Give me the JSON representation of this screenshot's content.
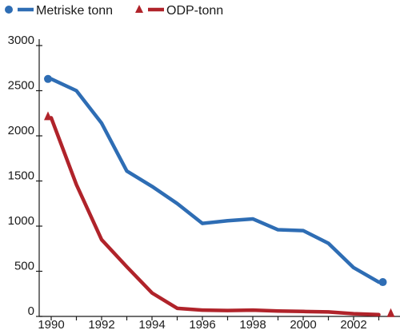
{
  "chart_data": {
    "type": "line",
    "title": "",
    "xlabel": "",
    "ylabel": "",
    "xlim": [
      1989.4,
      2003.8
    ],
    "ylim": [
      0,
      3000
    ],
    "y_ticks": [
      "0",
      "500",
      "1000",
      "1500",
      "2000",
      "2500",
      "3000"
    ],
    "x_ticks": [
      "1990",
      "1992",
      "1994",
      "1996",
      "1998",
      "2000",
      "2002"
    ],
    "grid": false,
    "legend_position": "top-left",
    "series": [
      {
        "name": "Metriske tonn",
        "color": "#2e6db4",
        "marker": "circle",
        "x": [
          1990,
          1991,
          1992,
          1993,
          1994,
          1995,
          1996,
          1997,
          1998,
          1999,
          2000,
          2001,
          2002,
          2003
        ],
        "y": [
          2630,
          2500,
          2140,
          1610,
          1440,
          1250,
          1030,
          1060,
          1080,
          960,
          950,
          810,
          540,
          380
        ]
      },
      {
        "name": "ODP-tonn",
        "color": "#b0232a",
        "marker": "triangle",
        "x": [
          1990,
          1991,
          1992,
          1993,
          1994,
          1995,
          1996,
          1997,
          1998,
          1999,
          2000,
          2001,
          2002,
          2003
        ],
        "y": [
          2200,
          1460,
          850,
          550,
          260,
          90,
          70,
          65,
          70,
          60,
          55,
          50,
          30,
          20
        ]
      }
    ]
  }
}
